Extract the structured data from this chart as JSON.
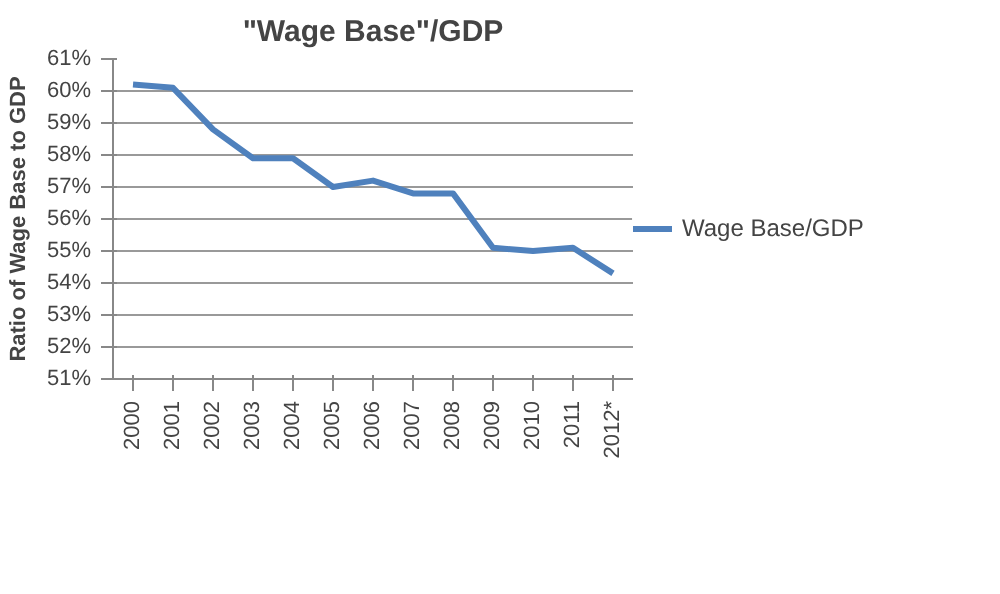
{
  "chart_data": {
    "type": "line",
    "title": "\"Wage Base\"/GDP",
    "ylabel": "Ratio of Wage Base to GDP",
    "categories": [
      "2000",
      "2001",
      "2002",
      "2003",
      "2004",
      "2005",
      "2006",
      "2007",
      "2008",
      "2009",
      "2010",
      "2011",
      "2012*"
    ],
    "series": [
      {
        "name": "Wage Base/GDP",
        "color": "#4f81bd",
        "values": [
          60.2,
          60.1,
          58.8,
          57.9,
          57.9,
          57.0,
          57.2,
          56.8,
          56.8,
          55.1,
          55.0,
          55.1,
          54.3
        ]
      }
    ],
    "ylim": [
      51,
      61
    ],
    "yticks": [
      {
        "value": 51,
        "label": "51%"
      },
      {
        "value": 52,
        "label": "52%"
      },
      {
        "value": 53,
        "label": "53%"
      },
      {
        "value": 54,
        "label": "54%"
      },
      {
        "value": 55,
        "label": "55%"
      },
      {
        "value": 56,
        "label": "56%"
      },
      {
        "value": 57,
        "label": "57%"
      },
      {
        "value": 58,
        "label": "58%"
      },
      {
        "value": 59,
        "label": "59%"
      },
      {
        "value": 60,
        "label": "60%"
      },
      {
        "value": 61,
        "label": "61%"
      }
    ],
    "grid": "y",
    "legend": "right",
    "marker": "none",
    "line_style": "solid"
  }
}
